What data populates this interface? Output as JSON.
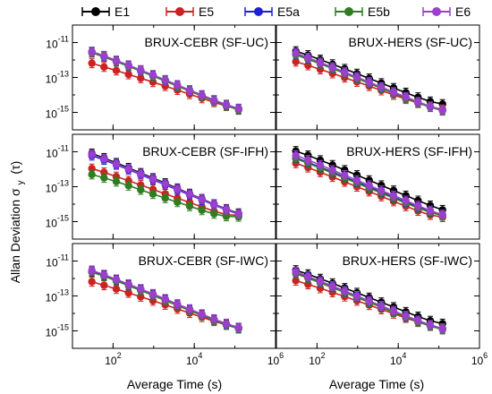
{
  "chart_data": {
    "type": "line",
    "ylabel_main": "Allan Deviation σ",
    "ylabel_sub": "y",
    "ylabel_paren": "(τ)",
    "xlabel": "Average Time (s)",
    "x_scale": "log",
    "y_scale": "log",
    "xlim": [
      10,
      1000000
    ],
    "ylim": [
      1e-16,
      1e-10
    ],
    "x_ticks": [
      100,
      10000,
      1000000
    ],
    "x_tick_labels": [
      {
        "base": "10",
        "exp": "2"
      },
      {
        "base": "10",
        "exp": "4"
      },
      {
        "base": "10",
        "exp": "6"
      }
    ],
    "y_ticks": [
      1e-11,
      1e-13,
      1e-15
    ],
    "y_tick_labels": [
      {
        "base": "10",
        "exp": "-11"
      },
      {
        "base": "10",
        "exp": "-13"
      },
      {
        "base": "10",
        "exp": "-15"
      }
    ],
    "legend_position": "top",
    "legend": [
      {
        "name": "E1",
        "color": "#000000"
      },
      {
        "name": "E5",
        "color": "#cc2222"
      },
      {
        "name": "E5a",
        "color": "#1f1fd6"
      },
      {
        "name": "E5b",
        "color": "#2e7d1e"
      },
      {
        "name": "E6",
        "color": "#9c3fcf"
      }
    ],
    "x": [
      30,
      60,
      120,
      240,
      480,
      960,
      1920,
      3840,
      7680,
      15360,
      30720,
      61440,
      122880
    ],
    "panels": [
      {
        "title": "BRUX-CEBR (SF-UC)",
        "series": [
          {
            "color": "#000000",
            "values": [
              2.8e-12,
              1.6e-12,
              8.6e-13,
              4.6e-13,
              2.4e-13,
              1.25e-13,
              6.4e-14,
              3.3e-14,
              1.7e-14,
              9e-15,
              4.7e-15,
              2.6e-15,
              1.5e-15
            ]
          },
          {
            "color": "#cc2222",
            "values": [
              6.5e-13,
              4e-13,
              2.5e-13,
              1.5e-13,
              9e-14,
              5.4e-14,
              3.2e-14,
              1.9e-14,
              1.1e-14,
              6.4e-15,
              3.8e-15,
              2.3e-15,
              1.6e-15
            ]
          },
          {
            "color": "#1f1fd6",
            "values": [
              3e-12,
              1.7e-12,
              9.2e-13,
              4.9e-13,
              2.6e-13,
              1.35e-13,
              7e-14,
              3.6e-14,
              1.85e-14,
              9.6e-15,
              5e-15,
              2.7e-15,
              1.6e-15
            ]
          },
          {
            "color": "#2e7d1e",
            "values": [
              2.6e-12,
              1.5e-12,
              8.1e-13,
              4.3e-13,
              2.3e-13,
              1.2e-13,
              6.2e-14,
              3.2e-14,
              1.65e-14,
              8.6e-15,
              4.5e-15,
              2.4e-15,
              1.4e-15
            ]
          },
          {
            "color": "#9c3fcf",
            "values": [
              3e-12,
              1.75e-12,
              9.4e-13,
              5e-13,
              2.65e-13,
              1.4e-13,
              7.2e-14,
              3.7e-14,
              1.9e-14,
              9.8e-15,
              5.1e-15,
              2.8e-15,
              1.65e-15
            ]
          }
        ]
      },
      {
        "title": "BRUX-HERS (SF-UC)",
        "series": [
          {
            "color": "#000000",
            "values": [
              3.2e-12,
              1.9e-12,
              1.05e-12,
              5.7e-13,
              3.1e-13,
              1.65e-13,
              8.8e-14,
              4.7e-14,
              2.5e-14,
              1.35e-14,
              7.3e-15,
              4.2e-15,
              3e-15
            ]
          },
          {
            "color": "#cc2222",
            "values": [
              8e-13,
              4.9e-13,
              2.9e-13,
              1.7e-13,
              9.8e-14,
              5.6e-14,
              3.2e-14,
              1.8e-14,
              1e-14,
              5.8e-15,
              3.4e-15,
              2.1e-15,
              1.5e-15
            ]
          },
          {
            "color": "#1f1fd6",
            "values": [
              2.2e-12,
              1.2e-12,
              6.4e-13,
              3.4e-13,
              1.8e-13,
              9.4e-14,
              4.9e-14,
              2.6e-14,
              1.35e-14,
              7.1e-15,
              3.8e-15,
              2.1e-15,
              1.3e-15
            ]
          },
          {
            "color": "#2e7d1e",
            "values": [
              2e-12,
              1.1e-12,
              6e-13,
              3.2e-13,
              1.7e-13,
              8.9e-14,
              4.6e-14,
              2.4e-14,
              1.25e-14,
              6.6e-15,
              3.5e-15,
              2e-15,
              1.25e-15
            ]
          },
          {
            "color": "#9c3fcf",
            "values": [
              2.5e-12,
              1.35e-12,
              7.2e-13,
              3.8e-13,
              2e-13,
              1.05e-13,
              5.4e-14,
              2.8e-14,
              1.45e-14,
              7.6e-15,
              4e-15,
              2.2e-15,
              1.35e-15
            ]
          }
        ]
      },
      {
        "title": "BRUX-CEBR (SF-IFH)",
        "series": [
          {
            "color": "#000000",
            "values": [
              8e-12,
              4.4e-12,
              2.3e-12,
              1.2e-12,
              6.1e-13,
              3.1e-13,
              1.6e-13,
              8e-14,
              4e-14,
              2e-14,
              1e-14,
              5.3e-15,
              3e-15
            ]
          },
          {
            "color": "#cc2222",
            "values": [
              1.1e-12,
              6.6e-13,
              3.8e-13,
              2.2e-13,
              1.25e-13,
              7e-14,
              3.9e-14,
              2.2e-14,
              1.25e-14,
              7e-15,
              4e-15,
              2.5e-15,
              2.3e-15
            ]
          },
          {
            "color": "#1f1fd6",
            "values": [
              6e-12,
              3.4e-12,
              1.8e-12,
              9.5e-13,
              4.9e-13,
              2.5e-13,
              1.3e-13,
              6.6e-14,
              3.4e-14,
              1.75e-14,
              9e-15,
              4.7e-15,
              2.7e-15
            ]
          },
          {
            "color": "#2e7d1e",
            "values": [
              5e-13,
              3.2e-13,
              1.95e-13,
              1.15e-13,
              6.6e-14,
              3.8e-14,
              2.2e-14,
              1.3e-14,
              7.6e-15,
              4.5e-15,
              2.8e-15,
              2e-15,
              1.9e-15
            ]
          },
          {
            "color": "#9c3fcf",
            "values": [
              7e-12,
              3.9e-12,
              2e-12,
              1.05e-12,
              5.4e-13,
              2.8e-13,
              1.45e-13,
              7.3e-14,
              3.7e-14,
              1.9e-14,
              9.6e-15,
              5e-15,
              2.8e-15
            ]
          }
        ]
      },
      {
        "title": "BRUX-HERS (SF-IFH)",
        "series": [
          {
            "color": "#000000",
            "values": [
              1.1e-11,
              6.2e-12,
              3.3e-12,
              1.75e-12,
              9e-13,
              4.6e-13,
              2.35e-13,
              1.2e-13,
              6.1e-14,
              3.1e-14,
              1.6e-14,
              8.4e-15,
              4.7e-15
            ]
          },
          {
            "color": "#cc2222",
            "values": [
              2.2e-12,
              1.25e-12,
              6.7e-13,
              3.6e-13,
              1.9e-13,
              1e-13,
              5.3e-14,
              2.8e-14,
              1.45e-14,
              7.6e-15,
              4.1e-15,
              2.4e-15,
              1.8e-15
            ]
          },
          {
            "color": "#1f1fd6",
            "values": [
              4.6e-12,
              2.5e-12,
              1.3e-12,
              6.9e-13,
              3.6e-13,
              1.85e-13,
              9.5e-14,
              4.9e-14,
              2.5e-14,
              1.3e-14,
              6.8e-15,
              3.7e-15,
              2.3e-15
            ]
          },
          {
            "color": "#2e7d1e",
            "values": [
              4e-12,
              2.2e-12,
              1.15e-12,
              6e-13,
              3.1e-13,
              1.6e-13,
              8.3e-14,
              4.3e-14,
              2.2e-14,
              1.15e-14,
              6.1e-15,
              3.4e-15,
              2.2e-15
            ]
          },
          {
            "color": "#9c3fcf",
            "values": [
              6.3e-12,
              3.4e-12,
              1.75e-12,
              9e-13,
              4.6e-13,
              2.35e-13,
              1.2e-13,
              6.1e-14,
              3.1e-14,
              1.6e-14,
              8.2e-15,
              4.3e-15,
              2.5e-15
            ]
          }
        ]
      },
      {
        "title": "BRUX-CEBR (SF-IWC)",
        "series": [
          {
            "color": "#000000",
            "values": [
              2.5e-12,
              1.45e-12,
              7.9e-13,
              4.2e-13,
              2.2e-13,
              1.15e-13,
              5.9e-14,
              3e-14,
              1.55e-14,
              8e-15,
              4.2e-15,
              2.3e-15,
              1.4e-15
            ]
          },
          {
            "color": "#cc2222",
            "values": [
              6.5e-13,
              4.1e-13,
              2.5e-13,
              1.5e-13,
              9e-14,
              5.3e-14,
              3.1e-14,
              1.8e-14,
              1.05e-14,
              6.1e-15,
              3.6e-15,
              2.2e-15,
              1.5e-15
            ]
          },
          {
            "color": "#1f1fd6",
            "values": [
              2.8e-12,
              1.6e-12,
              8.6e-13,
              4.6e-13,
              2.4e-13,
              1.25e-13,
              6.5e-14,
              3.3e-14,
              1.7e-14,
              8.8e-15,
              4.6e-15,
              2.5e-15,
              1.5e-15
            ]
          },
          {
            "color": "#2e7d1e",
            "values": [
              2.3e-12,
              1.35e-12,
              7.3e-13,
              3.9e-13,
              2.05e-13,
              1.07e-13,
              5.5e-14,
              2.85e-14,
              1.47e-14,
              7.6e-15,
              4e-15,
              2.2e-15,
              1.35e-15
            ]
          },
          {
            "color": "#9c3fcf",
            "values": [
              2.9e-12,
              1.65e-12,
              8.9e-13,
              4.7e-13,
              2.5e-13,
              1.3e-13,
              6.7e-14,
              3.4e-14,
              1.75e-14,
              9e-15,
              4.7e-15,
              2.6e-15,
              1.55e-15
            ]
          }
        ]
      },
      {
        "title": "BRUX-HERS (SF-IWC)",
        "series": [
          {
            "color": "#000000",
            "values": [
              3e-12,
              1.75e-12,
              9.7e-13,
              5.3e-13,
              2.85e-13,
              1.52e-13,
              8.1e-14,
              4.3e-14,
              2.3e-14,
              1.22e-14,
              6.6e-15,
              3.8e-15,
              2.6e-15
            ]
          },
          {
            "color": "#cc2222",
            "values": [
              7.5e-13,
              4.6e-13,
              2.75e-13,
              1.6e-13,
              9.2e-14,
              5.3e-14,
              3e-14,
              1.7e-14,
              9.6e-15,
              5.5e-15,
              3.2e-15,
              2e-15,
              1.4e-15
            ]
          },
          {
            "color": "#1f1fd6",
            "values": [
              2.1e-12,
              1.15e-12,
              6.1e-13,
              3.25e-13,
              1.7e-13,
              8.9e-14,
              4.6e-14,
              2.4e-14,
              1.25e-14,
              6.6e-15,
              3.5e-15,
              2e-15,
              1.25e-15
            ]
          },
          {
            "color": "#2e7d1e",
            "values": [
              1.9e-12,
              1.05e-12,
              5.6e-13,
              3e-13,
              1.58e-13,
              8.3e-14,
              4.3e-14,
              2.25e-14,
              1.17e-14,
              6.2e-15,
              3.3e-15,
              1.9e-15,
              1.2e-15
            ]
          },
          {
            "color": "#9c3fcf",
            "values": [
              2.4e-12,
              1.3e-12,
              6.9e-13,
              3.65e-13,
              1.92e-13,
              1e-13,
              5.2e-14,
              2.7e-14,
              1.4e-14,
              7.3e-15,
              3.9e-15,
              2.2e-15,
              1.35e-15
            ]
          }
        ]
      }
    ]
  }
}
